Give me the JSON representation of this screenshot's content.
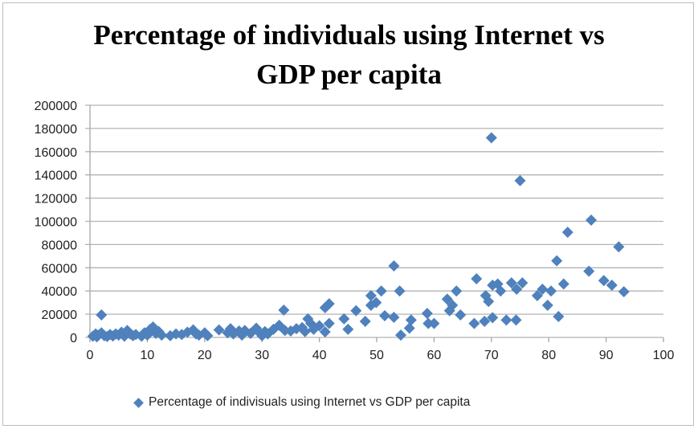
{
  "chart_data": {
    "type": "scatter",
    "title_lines": [
      "Percentage of individuals using Internet vs",
      "GDP per capita"
    ],
    "xlabel": "",
    "ylabel": "",
    "xlim": [
      0,
      100
    ],
    "ylim": [
      0,
      200000
    ],
    "x_ticks": [
      "0",
      "10",
      "20",
      "30",
      "40",
      "50",
      "60",
      "70",
      "80",
      "90",
      "100"
    ],
    "y_ticks": [
      "0",
      "20000",
      "40000",
      "60000",
      "80000",
      "100000",
      "120000",
      "140000",
      "160000",
      "180000",
      "200000"
    ],
    "grid": "horizontal",
    "legend_position": "bottom",
    "marker_color": "#4f81bd",
    "series": [
      {
        "name": "Percentage of indivisuals using Internet vs GDP per capita",
        "points": [
          [
            0.5,
            1000
          ],
          [
            1,
            3000
          ],
          [
            1.2,
            500
          ],
          [
            1.5,
            2000
          ],
          [
            2,
            4000
          ],
          [
            2,
            19400
          ],
          [
            2.5,
            1500
          ],
          [
            3,
            800
          ],
          [
            3.5,
            2500
          ],
          [
            4,
            1200
          ],
          [
            4.5,
            3000
          ],
          [
            5,
            2000
          ],
          [
            5.5,
            4500
          ],
          [
            6,
            1000
          ],
          [
            6.5,
            6000
          ],
          [
            7,
            3000
          ],
          [
            7.5,
            1500
          ],
          [
            8,
            2500
          ],
          [
            9,
            1000
          ],
          [
            9.5,
            4000
          ],
          [
            10,
            2000
          ],
          [
            10.5,
            7000
          ],
          [
            11,
            9000
          ],
          [
            11.5,
            3500
          ],
          [
            12,
            5000
          ],
          [
            12.5,
            2000
          ],
          [
            14,
            1500
          ],
          [
            15,
            3000
          ],
          [
            16,
            2500
          ],
          [
            17,
            4500
          ],
          [
            18,
            6500
          ],
          [
            18.5,
            3000
          ],
          [
            19,
            2000
          ],
          [
            20,
            4000
          ],
          [
            20.5,
            1500
          ],
          [
            22.5,
            6500
          ],
          [
            24,
            4000
          ],
          [
            24.5,
            7500
          ],
          [
            25,
            3000
          ],
          [
            26,
            5500
          ],
          [
            26.5,
            2000
          ],
          [
            27,
            6000
          ],
          [
            28,
            3500
          ],
          [
            29,
            8000
          ],
          [
            29.5,
            4500
          ],
          [
            30,
            1500
          ],
          [
            30.5,
            5000
          ],
          [
            31,
            3000
          ],
          [
            32,
            7000
          ],
          [
            33,
            10500
          ],
          [
            33.8,
            23500
          ],
          [
            34,
            6000
          ],
          [
            35,
            5500
          ],
          [
            36,
            7500
          ],
          [
            37,
            8500
          ],
          [
            37.5,
            5000
          ],
          [
            38,
            16000
          ],
          [
            38.5,
            12000
          ],
          [
            39,
            7000
          ],
          [
            40,
            10000
          ],
          [
            41,
            4800
          ],
          [
            41,
            25600
          ],
          [
            41.7,
            12000
          ],
          [
            41.7,
            29000
          ],
          [
            44.3,
            16000
          ],
          [
            45,
            7000
          ],
          [
            46.4,
            23000
          ],
          [
            48,
            13800
          ],
          [
            49,
            36000
          ],
          [
            49,
            27700
          ],
          [
            49.9,
            30000
          ],
          [
            50.8,
            40000
          ],
          [
            51.4,
            18700
          ],
          [
            53,
            61600
          ],
          [
            53,
            17300
          ],
          [
            54,
            40000
          ],
          [
            54.2,
            2000
          ],
          [
            55.7,
            8000
          ],
          [
            56,
            15000
          ],
          [
            58.8,
            20700
          ],
          [
            59,
            12000
          ],
          [
            60,
            12000
          ],
          [
            62.3,
            33000
          ],
          [
            62.7,
            23000
          ],
          [
            63.2,
            27700
          ],
          [
            63.9,
            40000
          ],
          [
            64.6,
            19400
          ],
          [
            67,
            12000
          ],
          [
            67.4,
            50500
          ],
          [
            68.8,
            13800
          ],
          [
            69,
            36000
          ],
          [
            69.5,
            31000
          ],
          [
            70,
            172000
          ],
          [
            70.2,
            45000
          ],
          [
            70.2,
            17000
          ],
          [
            71.1,
            46000
          ],
          [
            71.6,
            40000
          ],
          [
            72.6,
            15000
          ],
          [
            73.5,
            47000
          ],
          [
            74.3,
            15000
          ],
          [
            74.4,
            41500
          ],
          [
            75,
            135000
          ],
          [
            75.4,
            47000
          ],
          [
            78,
            36000
          ],
          [
            78.9,
            41500
          ],
          [
            79.8,
            27700
          ],
          [
            80.4,
            40000
          ],
          [
            81.4,
            66000
          ],
          [
            81.7,
            18000
          ],
          [
            82.6,
            46000
          ],
          [
            83.3,
            90600
          ],
          [
            87,
            57000
          ],
          [
            87.4,
            101000
          ],
          [
            89.6,
            49000
          ],
          [
            91,
            45000
          ],
          [
            92.2,
            78000
          ],
          [
            93.1,
            39400
          ]
        ]
      }
    ]
  }
}
